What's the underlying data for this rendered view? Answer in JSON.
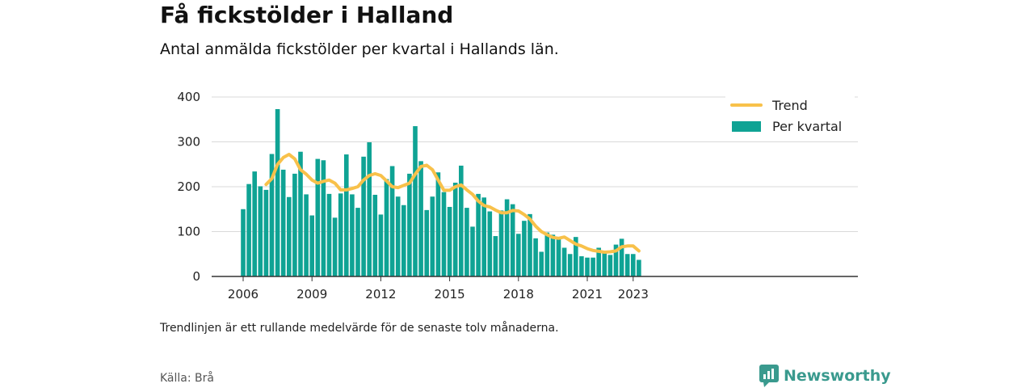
{
  "header": {
    "title": "Få fickstölder i Halland",
    "subtitle": "Antal anmälda fickstölder per kvartal i Hallands län."
  },
  "footer": {
    "note": "Trendlinjen är ett rullande medelvärde för de senaste tolv månaderna.",
    "source": "Källa: Brå",
    "brand": "Newsworthy"
  },
  "colors": {
    "bar": "#0fa394",
    "trend": "#f8c14a",
    "grid": "#d9d9d9",
    "axis": "#333333",
    "brand": "#3a9a8e"
  },
  "chart_data": {
    "type": "bar",
    "xlabel": "",
    "ylabel": "",
    "ylim": [
      0,
      400
    ],
    "yticks": [
      0,
      100,
      200,
      300,
      400
    ],
    "xticks": [
      "2006",
      "2009",
      "2012",
      "2015",
      "2018",
      "2021",
      "2023"
    ],
    "grid": true,
    "legend_position": "top-right",
    "start_quarter": "2006 Q1",
    "x": [
      "2006 Q1",
      "2006 Q2",
      "2006 Q3",
      "2006 Q4",
      "2007 Q1",
      "2007 Q2",
      "2007 Q3",
      "2007 Q4",
      "2008 Q1",
      "2008 Q2",
      "2008 Q3",
      "2008 Q4",
      "2009 Q1",
      "2009 Q2",
      "2009 Q3",
      "2009 Q4",
      "2010 Q1",
      "2010 Q2",
      "2010 Q3",
      "2010 Q4",
      "2011 Q1",
      "2011 Q2",
      "2011 Q3",
      "2011 Q4",
      "2012 Q1",
      "2012 Q2",
      "2012 Q3",
      "2012 Q4",
      "2013 Q1",
      "2013 Q2",
      "2013 Q3",
      "2013 Q4",
      "2014 Q1",
      "2014 Q2",
      "2014 Q3",
      "2014 Q4",
      "2015 Q1",
      "2015 Q2",
      "2015 Q3",
      "2015 Q4",
      "2016 Q1",
      "2016 Q2",
      "2016 Q3",
      "2016 Q4",
      "2017 Q1",
      "2017 Q2",
      "2017 Q3",
      "2017 Q4",
      "2018 Q1",
      "2018 Q2",
      "2018 Q3",
      "2018 Q4",
      "2019 Q1",
      "2019 Q2",
      "2019 Q3",
      "2019 Q4",
      "2020 Q1",
      "2020 Q2",
      "2020 Q3",
      "2020 Q4",
      "2021 Q1",
      "2021 Q2",
      "2021 Q3",
      "2021 Q4",
      "2022 Q1",
      "2022 Q2",
      "2022 Q3",
      "2022 Q4",
      "2023 Q1",
      "2023 Q2"
    ],
    "series": [
      {
        "name": "Per kvartal",
        "type": "bar",
        "values": [
          150,
          206,
          234,
          201,
          193,
          273,
          373,
          238,
          177,
          229,
          278,
          183,
          136,
          262,
          259,
          184,
          131,
          185,
          272,
          183,
          153,
          267,
          299,
          182,
          138,
          217,
          246,
          178,
          159,
          229,
          335,
          257,
          148,
          178,
          232,
          188,
          155,
          209,
          247,
          153,
          111,
          184,
          176,
          145,
          90,
          147,
          172,
          161,
          95,
          124,
          139,
          85,
          55,
          98,
          93,
          84,
          64,
          50,
          88,
          45,
          42,
          42,
          64,
          52,
          48,
          71,
          84,
          50,
          50,
          37
        ]
      },
      {
        "name": "Trend",
        "type": "line",
        "values": [
          null,
          null,
          null,
          null,
          205,
          218,
          250,
          265,
          272,
          262,
          238,
          228,
          215,
          208,
          212,
          215,
          208,
          193,
          193,
          196,
          200,
          215,
          225,
          229,
          225,
          213,
          200,
          198,
          203,
          208,
          228,
          245,
          248,
          238,
          215,
          192,
          192,
          200,
          204,
          193,
          183,
          168,
          158,
          155,
          148,
          142,
          142,
          147,
          146,
          138,
          128,
          112,
          100,
          93,
          87,
          85,
          88,
          80,
          72,
          68,
          62,
          58,
          56,
          54,
          55,
          57,
          66,
          68,
          68,
          57
        ]
      }
    ]
  }
}
